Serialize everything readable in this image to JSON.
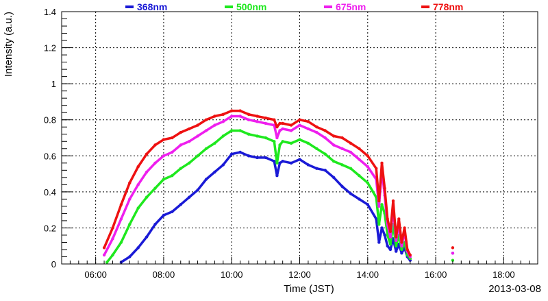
{
  "chart_data": {
    "type": "scatter",
    "xlabel": "Time (JST)",
    "ylabel": "Intensity (a.u.)",
    "date_label": "2013-03-08",
    "xlim": [
      "05:00",
      "19:00"
    ],
    "ylim": [
      0,
      1.4
    ],
    "x_ticks": [
      "06:00",
      "08:00",
      "10:00",
      "12:00",
      "14:00",
      "16:00",
      "18:00"
    ],
    "y_ticks": [
      "0",
      "0.2",
      "0.4",
      "0.6",
      "0.8",
      "1",
      "1.2",
      "1.4"
    ],
    "grid": true,
    "legend_position": "top",
    "series": [
      {
        "name": "368nm",
        "color": "#1a1ad6",
        "x": [
          "06:45",
          "07:00",
          "07:15",
          "07:30",
          "07:45",
          "08:00",
          "08:15",
          "08:30",
          "08:45",
          "09:00",
          "09:15",
          "09:30",
          "09:45",
          "10:00",
          "10:15",
          "10:30",
          "10:45",
          "11:00",
          "11:15",
          "11:20",
          "11:25",
          "11:30",
          "11:45",
          "12:00",
          "12:15",
          "12:30",
          "12:45",
          "13:00",
          "13:15",
          "13:30",
          "13:45",
          "14:00",
          "14:15",
          "14:20",
          "14:25",
          "14:30",
          "14:35",
          "14:40",
          "14:45",
          "14:50",
          "14:55",
          "15:00",
          "15:05",
          "15:10",
          "15:15",
          "16:30"
        ],
        "y": [
          0.01,
          0.04,
          0.09,
          0.15,
          0.22,
          0.27,
          0.29,
          0.33,
          0.37,
          0.41,
          0.47,
          0.51,
          0.55,
          0.61,
          0.62,
          0.6,
          0.59,
          0.59,
          0.57,
          0.49,
          0.56,
          0.57,
          0.56,
          0.58,
          0.55,
          0.53,
          0.52,
          0.48,
          0.43,
          0.39,
          0.36,
          0.33,
          0.25,
          0.12,
          0.2,
          0.16,
          0.1,
          0.08,
          0.14,
          0.07,
          0.11,
          0.06,
          0.09,
          0.04,
          0.02,
          0.06
        ]
      },
      {
        "name": "500nm",
        "color": "#1ee81e",
        "x": [
          "06:20",
          "06:30",
          "06:45",
          "07:00",
          "07:15",
          "07:30",
          "07:45",
          "08:00",
          "08:15",
          "08:30",
          "08:45",
          "09:00",
          "09:15",
          "09:30",
          "09:45",
          "10:00",
          "10:15",
          "10:30",
          "10:45",
          "11:00",
          "11:15",
          "11:20",
          "11:25",
          "11:30",
          "11:45",
          "12:00",
          "12:15",
          "12:30",
          "12:45",
          "13:00",
          "13:15",
          "13:30",
          "13:45",
          "14:00",
          "14:15",
          "14:20",
          "14:25",
          "14:30",
          "14:35",
          "14:40",
          "14:45",
          "14:50",
          "14:55",
          "15:00",
          "15:05",
          "15:10",
          "15:15",
          "16:30"
        ],
        "y": [
          0.01,
          0.05,
          0.12,
          0.22,
          0.31,
          0.37,
          0.42,
          0.47,
          0.49,
          0.53,
          0.56,
          0.6,
          0.64,
          0.67,
          0.71,
          0.74,
          0.74,
          0.72,
          0.71,
          0.7,
          0.68,
          0.56,
          0.66,
          0.68,
          0.67,
          0.69,
          0.67,
          0.64,
          0.61,
          0.57,
          0.55,
          0.53,
          0.49,
          0.45,
          0.37,
          0.22,
          0.33,
          0.28,
          0.16,
          0.11,
          0.22,
          0.1,
          0.16,
          0.08,
          0.12,
          0.05,
          0.03,
          0.02
        ]
      },
      {
        "name": "675nm",
        "color": "#ee1eee",
        "x": [
          "06:15",
          "06:30",
          "06:45",
          "07:00",
          "07:15",
          "07:30",
          "07:45",
          "08:00",
          "08:15",
          "08:30",
          "08:45",
          "09:00",
          "09:15",
          "09:30",
          "09:45",
          "10:00",
          "10:15",
          "10:30",
          "10:45",
          "11:00",
          "11:15",
          "11:20",
          "11:25",
          "11:30",
          "11:45",
          "12:00",
          "12:15",
          "12:30",
          "12:45",
          "13:00",
          "13:15",
          "13:30",
          "13:45",
          "14:00",
          "14:15",
          "14:20",
          "14:25",
          "14:30",
          "14:35",
          "14:40",
          "14:45",
          "14:50",
          "14:55",
          "15:00",
          "15:05",
          "15:10",
          "15:15",
          "16:30"
        ],
        "y": [
          0.05,
          0.14,
          0.25,
          0.36,
          0.44,
          0.51,
          0.56,
          0.6,
          0.62,
          0.66,
          0.68,
          0.71,
          0.74,
          0.77,
          0.79,
          0.82,
          0.82,
          0.8,
          0.79,
          0.78,
          0.77,
          0.7,
          0.74,
          0.75,
          0.74,
          0.77,
          0.75,
          0.73,
          0.7,
          0.66,
          0.64,
          0.62,
          0.58,
          0.54,
          0.47,
          0.32,
          0.52,
          0.38,
          0.22,
          0.15,
          0.31,
          0.13,
          0.22,
          0.1,
          0.18,
          0.07,
          0.04,
          0.06
        ]
      },
      {
        "name": "778nm",
        "color": "#ee1111",
        "x": [
          "06:15",
          "06:30",
          "06:45",
          "07:00",
          "07:15",
          "07:30",
          "07:45",
          "08:00",
          "08:15",
          "08:30",
          "08:45",
          "09:00",
          "09:15",
          "09:30",
          "09:45",
          "10:00",
          "10:15",
          "10:30",
          "10:45",
          "11:00",
          "11:15",
          "11:20",
          "11:25",
          "11:30",
          "11:45",
          "12:00",
          "12:15",
          "12:30",
          "12:45",
          "13:00",
          "13:15",
          "13:30",
          "13:45",
          "14:00",
          "14:15",
          "14:20",
          "14:25",
          "14:30",
          "14:35",
          "14:40",
          "14:45",
          "14:50",
          "14:55",
          "15:00",
          "15:05",
          "15:10",
          "15:15",
          "16:30"
        ],
        "y": [
          0.09,
          0.2,
          0.33,
          0.45,
          0.54,
          0.61,
          0.66,
          0.69,
          0.7,
          0.73,
          0.75,
          0.77,
          0.8,
          0.82,
          0.83,
          0.85,
          0.85,
          0.83,
          0.82,
          0.81,
          0.8,
          0.76,
          0.78,
          0.78,
          0.77,
          0.8,
          0.79,
          0.76,
          0.74,
          0.71,
          0.7,
          0.67,
          0.64,
          0.6,
          0.53,
          0.35,
          0.56,
          0.42,
          0.25,
          0.18,
          0.35,
          0.15,
          0.25,
          0.12,
          0.2,
          0.08,
          0.05,
          0.09
        ]
      }
    ]
  }
}
